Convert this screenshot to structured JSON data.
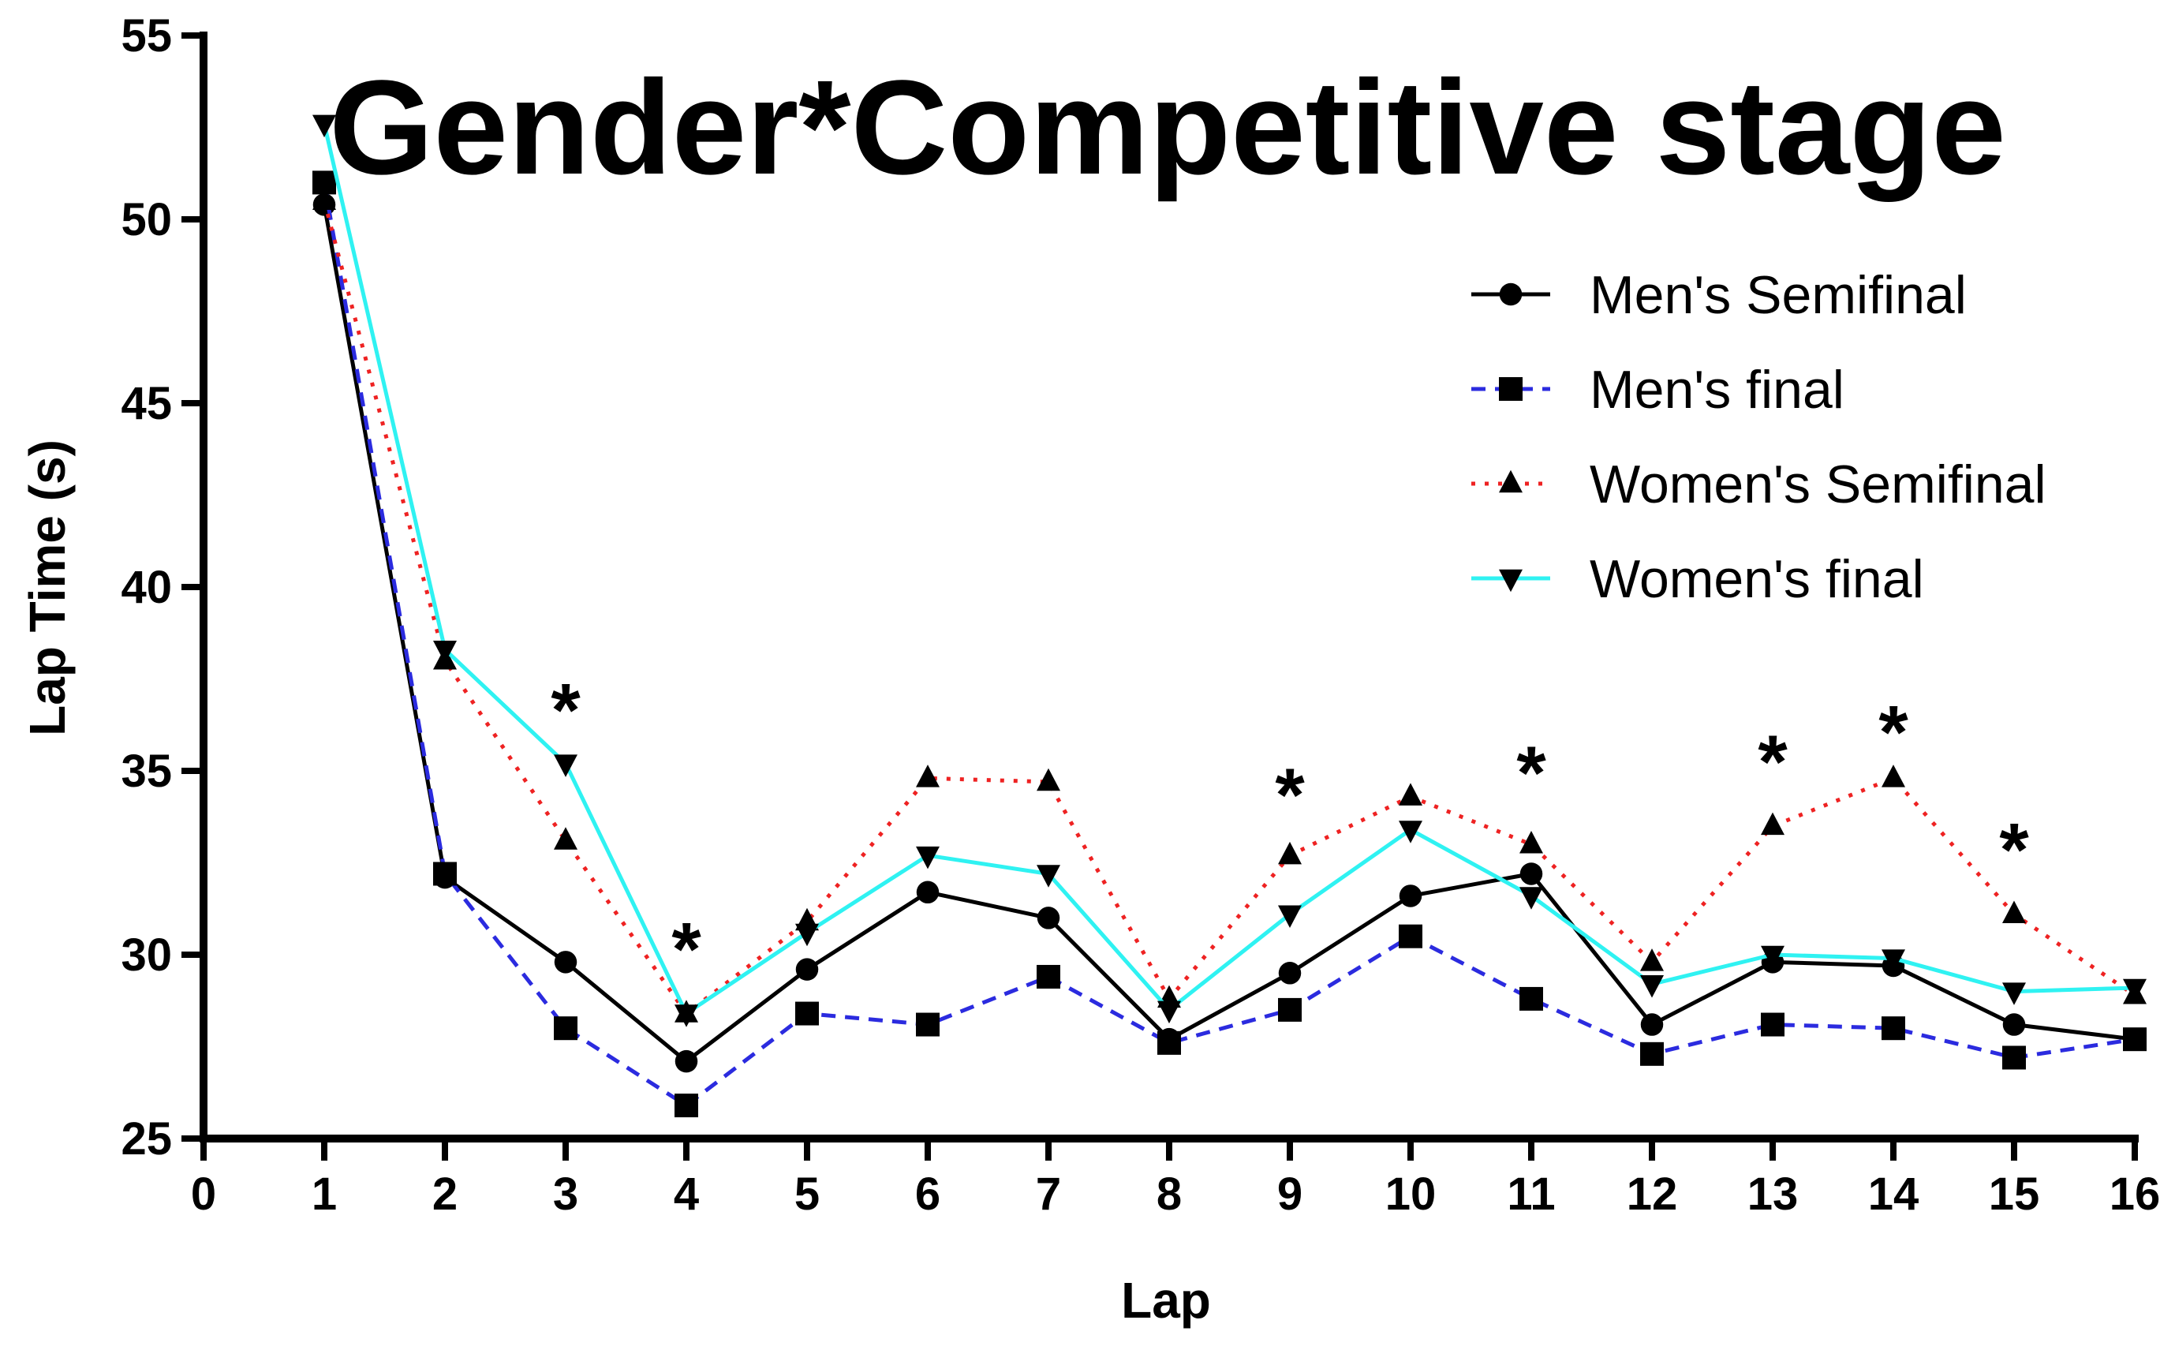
{
  "chart_data": {
    "type": "line",
    "title": "Gender*Competitive stage",
    "xlabel": "Lap",
    "ylabel": "Lap Time (s)",
    "xlim": [
      0,
      16
    ],
    "ylim": [
      25,
      55
    ],
    "x_ticks": [
      0,
      1,
      2,
      3,
      4,
      5,
      6,
      7,
      8,
      9,
      10,
      11,
      12,
      13,
      14,
      15,
      16
    ],
    "y_ticks": [
      25,
      30,
      35,
      40,
      45,
      50,
      55
    ],
    "grid": false,
    "legend_position": "top-right",
    "x": [
      1,
      2,
      3,
      4,
      5,
      6,
      7,
      8,
      9,
      10,
      11,
      12,
      13,
      14,
      15,
      16
    ],
    "series": [
      {
        "name": "Men's Semifinal",
        "color": "#000000",
        "line_style": "solid",
        "marker": "circle",
        "values": [
          50.4,
          32.1,
          29.8,
          27.1,
          29.6,
          31.7,
          31.0,
          27.7,
          29.5,
          31.6,
          32.2,
          28.1,
          29.8,
          29.7,
          28.1,
          27.7
        ]
      },
      {
        "name": "Men's final",
        "color": "#2b2bdf",
        "line_style": "dashed",
        "marker": "square",
        "values": [
          51.0,
          32.2,
          28.0,
          25.9,
          28.4,
          28.1,
          29.4,
          27.6,
          28.5,
          30.5,
          28.8,
          27.3,
          28.1,
          28.0,
          27.2,
          27.7
        ]
      },
      {
        "name": "Women's Semifinal",
        "color": "#ee2222",
        "line_style": "dotted",
        "marker": "triangle-up",
        "values": [
          50.5,
          38.0,
          33.1,
          28.4,
          30.9,
          34.8,
          34.7,
          28.8,
          32.7,
          34.3,
          33.0,
          29.8,
          33.5,
          34.8,
          31.1,
          28.9
        ]
      },
      {
        "name": "Women's final",
        "color": "#2ff2f2",
        "line_style": "solid",
        "marker": "triangle-down",
        "values": [
          52.6,
          38.3,
          35.2,
          28.4,
          30.6,
          32.7,
          32.2,
          28.5,
          31.1,
          33.4,
          31.6,
          29.2,
          30.0,
          29.9,
          29.0,
          29.1
        ]
      }
    ],
    "annotations": [
      {
        "text": "*",
        "x": 3,
        "y": 36.8
      },
      {
        "text": "*",
        "x": 4,
        "y": 30.3
      },
      {
        "text": "*",
        "x": 9,
        "y": 34.5
      },
      {
        "text": "*",
        "x": 11,
        "y": 35.1
      },
      {
        "text": "*",
        "x": 13,
        "y": 35.4
      },
      {
        "text": "*",
        "x": 14,
        "y": 36.2
      },
      {
        "text": "*",
        "x": 15,
        "y": 33.0
      }
    ]
  }
}
